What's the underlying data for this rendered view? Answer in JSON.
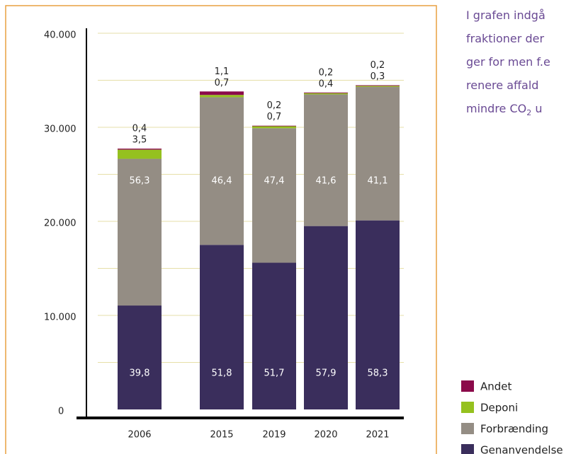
{
  "chart_data": {
    "type": "stacked_bar",
    "categories": [
      "2006",
      "2015",
      "2019",
      "2020",
      "2021"
    ],
    "series": [
      {
        "name": "Genanvendelse",
        "color": "#3a2e5c",
        "values": [
          11050,
          17500,
          15600,
          19500,
          20100
        ],
        "share_labels": [
          "39,8",
          "51,8",
          "51,7",
          "57,9",
          "58,3"
        ]
      },
      {
        "name": "Forbrænding",
        "color": "#948d84",
        "values": [
          15600,
          15700,
          14300,
          14000,
          14200
        ],
        "share_labels": [
          "56,3",
          "46,4",
          "47,4",
          "41,6",
          "41,1"
        ]
      },
      {
        "name": "Deponi",
        "color": "#95c11f",
        "values": [
          970,
          240,
          210,
          130,
          100
        ],
        "share_labels": [
          "3,5",
          "0,7",
          "0,7",
          "0,4",
          "0,3"
        ]
      },
      {
        "name": "Andet",
        "color": "#8b0a4a",
        "values": [
          110,
          370,
          60,
          70,
          70
        ],
        "share_labels": [
          "0,4",
          "1,1",
          "0,2",
          "0,2",
          "0,2"
        ]
      }
    ],
    "ylim": [
      0,
      40000
    ],
    "yticks": [
      0,
      {
        "value": 10000,
        "label": "10.000"
      },
      {
        "value": 20000,
        "label": "20.000"
      },
      {
        "value": 30000,
        "label": "30.000"
      },
      {
        "value": 40000,
        "label": "40.000"
      }
    ],
    "ygrid": [
      5000,
      10000,
      15000,
      20000,
      25000,
      30000,
      35000,
      40000
    ],
    "grid": true
  },
  "side_text": {
    "lines": [
      "I grafen indgå",
      "fraktioner der",
      "ger for men f.e",
      "renere affald"
    ],
    "co2_line": [
      "mindre CO",
      "2",
      " u"
    ]
  }
}
